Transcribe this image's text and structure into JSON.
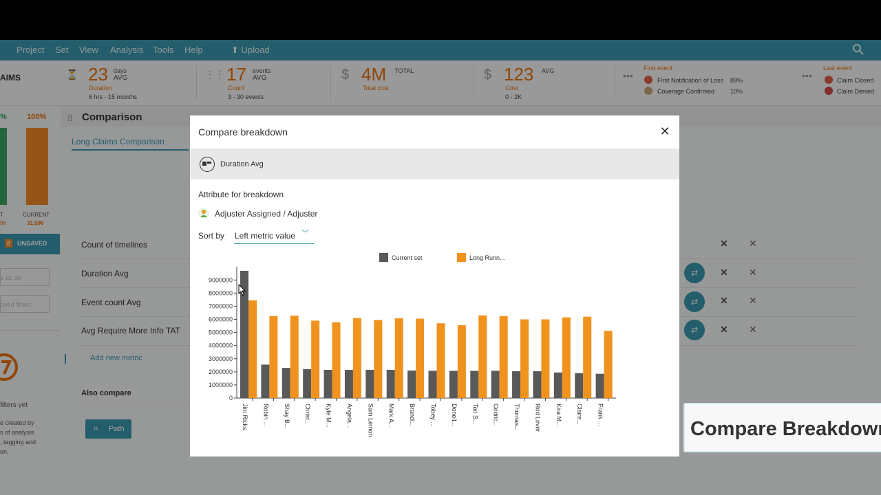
{
  "menu": {
    "items": [
      "Project",
      "Set",
      "View",
      "Analysis",
      "Tools",
      "Help"
    ],
    "upload": "Upload"
  },
  "metrics": {
    "left_title": "AIMS",
    "duration": {
      "value": "23",
      "unit": "days",
      "agg": "AVG",
      "label": "Duration",
      "range": "6 hrs - 15 months"
    },
    "events": {
      "value": "17",
      "unit": "events",
      "agg": "AVG",
      "label": "Count",
      "range": "3 - 30 events"
    },
    "total_cost": {
      "currency": "$",
      "value": "4M",
      "agg": "TOTAL",
      "label": "Total cost"
    },
    "cost": {
      "currency": "$",
      "value": "123",
      "agg": "AVG",
      "label": "Cost",
      "range": "0 - 2K"
    },
    "first_event": {
      "title": "First event",
      "rows": [
        {
          "label": "First Notification of Loss",
          "pct": "89%"
        },
        {
          "label": "Coverage Confirmed",
          "pct": "10%"
        }
      ]
    },
    "last_event": {
      "title": "Last event",
      "rows": [
        {
          "label": "Claim Closed"
        },
        {
          "label": "Claim Denied"
        }
      ]
    }
  },
  "left": {
    "pct_green": "%",
    "pct_orange": "100%",
    "current_label": "CURRENT",
    "current_value": "31,596",
    "t_label": "T",
    "t_value": "96",
    "unsaved_count": "0",
    "unsaved_label": "UNSAVED",
    "save_set": "s as set",
    "saved_filters": "aved filters",
    "no_filters": "filters yet",
    "help_lines": [
      "e created by",
      "s of analysis",
      ", tagging and",
      "on."
    ]
  },
  "comparison": {
    "title": "Comparison",
    "tab": "Long Claims Comparison",
    "rows": [
      "Count of timelines",
      "Duration Avg",
      "Event count Avg",
      "Avg Require More Info TAT"
    ],
    "add_metric": "Add new metric",
    "also_compare": "Also compare",
    "path_label": "Path"
  },
  "callout": "Compare Breakdown",
  "modal": {
    "title": "Compare breakdown",
    "metric": "Duration Avg",
    "attr_label": "Attribute for breakdown",
    "attr_value": "Adjuster Assigned / Adjuster",
    "sort_label": "Sort by",
    "sort_value": "Left metric value"
  },
  "colors": {
    "teal": "#3a97ad",
    "orange": "#f0921e",
    "grey_bar": "#595959",
    "accent_text": "#e8720c"
  },
  "chart_data": {
    "type": "bar",
    "categories": [
      "Jim Ricks",
      "Robin ...",
      "Shay B...",
      "Christ...",
      "Kyle M...",
      "Angela...",
      "Sam Lemon",
      "Mark A...",
      "Brandi...",
      "Tobey ...",
      "Donell...",
      "Tori S...",
      "Cedric...",
      "Thomas...",
      "Rod Lever",
      "Kira M...",
      "Claire...",
      "Frank ..."
    ],
    "series": [
      {
        "name": "Current set",
        "color": "#595959",
        "values": [
          9700000,
          2550000,
          2300000,
          2200000,
          2150000,
          2150000,
          2150000,
          2150000,
          2100000,
          2080000,
          2080000,
          2080000,
          2080000,
          2050000,
          2050000,
          1950000,
          1900000,
          1850000
        ]
      },
      {
        "name": "Long Runn...",
        "color": "#f0921e",
        "values": [
          7450000,
          6250000,
          6280000,
          5900000,
          5780000,
          6100000,
          5950000,
          6080000,
          6050000,
          5700000,
          5550000,
          6300000,
          6250000,
          6000000,
          6000000,
          6150000,
          6200000,
          5120000
        ]
      }
    ],
    "yticks": [
      "0",
      "1000000",
      "2000000",
      "3000000",
      "4000000",
      "5000000",
      "6000000",
      "7000000",
      "8000000",
      "9000000"
    ],
    "ylim": [
      0,
      9800000
    ],
    "legend": "top-center"
  }
}
